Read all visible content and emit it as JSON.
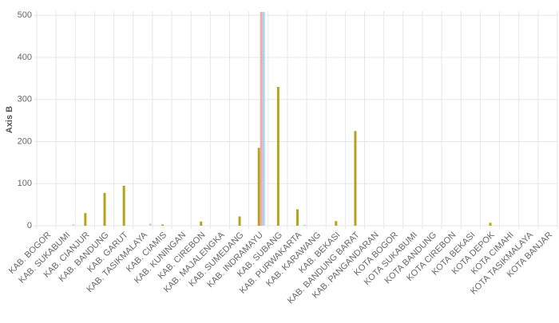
{
  "chart_data": {
    "type": "bar",
    "y_label": "Axis B",
    "categories": [
      "KAB. BOGOR",
      "KAB. SUKABUMI",
      "KAB. CIANJUR",
      "KAB. BANDUNG",
      "KAB. GARUT",
      "KAB. TASIKMALAYA",
      "KAB. CIAMIS",
      "KAB. KUNINGAN",
      "KAB. CIREBON",
      "KAB. MAJALENGKA",
      "KAB. SUMEDANG",
      "KAB. INDRAMAYU",
      "KAB. SUBANG",
      "KAB. PURWAKARTA",
      "KAB. KARAWANG",
      "KAB. BEKASI",
      "KAB. BANDUNG BARAT",
      "KAB. PANGANDARAN",
      "KOTA BOGOR",
      "KOTA SUKABUMI",
      "KOTA BANDUNG",
      "KOTA CIREBON",
      "KOTA BEKASI",
      "KOTA DEPOK",
      "KOTA CIMAHI",
      "KOTA TASIKMALAYA",
      "KOTA BANJAR"
    ],
    "series": [
      {
        "color": "#b5a31e",
        "values": [
          0,
          0,
          30,
          78,
          95,
          0,
          3,
          0,
          10,
          0,
          22,
          185,
          330,
          39,
          0,
          11,
          225,
          0,
          0,
          0,
          0,
          0,
          0,
          7,
          0,
          0,
          0
        ]
      },
      {
        "color": "#f4a8a8",
        "values": [
          0,
          0,
          0,
          0,
          0,
          0,
          0,
          0,
          0,
          0,
          0,
          508,
          0,
          0,
          0,
          0,
          0,
          0,
          0,
          0,
          0,
          0,
          0,
          0,
          0,
          0,
          0
        ]
      },
      {
        "color": "#a8d4f4",
        "values": [
          0,
          0,
          0,
          0,
          0,
          0,
          0,
          0,
          0,
          0,
          0,
          508,
          0,
          0,
          0,
          0,
          0,
          0,
          0,
          0,
          0,
          0,
          0,
          0,
          0,
          0,
          0
        ]
      },
      {
        "color": "#cfcfcf",
        "values": [
          0,
          3,
          0,
          0,
          0,
          5,
          0,
          0,
          0,
          0,
          0,
          0,
          0,
          2,
          1,
          0,
          0,
          0,
          0,
          0,
          0,
          0,
          0,
          0,
          0,
          0,
          0
        ]
      }
    ],
    "ylim": [
      0,
      510
    ],
    "yticks": [
      0,
      100,
      200,
      300,
      400,
      500
    ],
    "grid": true
  }
}
